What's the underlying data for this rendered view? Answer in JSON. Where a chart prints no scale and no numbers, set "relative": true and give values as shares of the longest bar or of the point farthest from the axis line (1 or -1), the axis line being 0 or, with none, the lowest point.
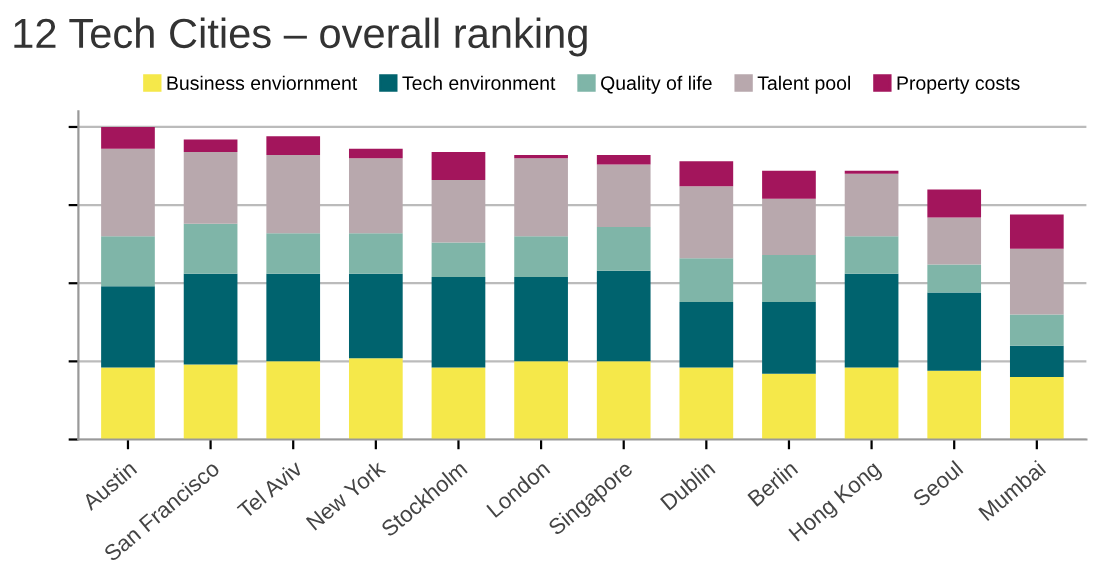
{
  "chart_data": {
    "type": "bar",
    "title": "12 Tech Cities – overall ranking",
    "stacked": true,
    "relative": true,
    "grid": "y",
    "legend": "top",
    "categories": [
      "Austin",
      "San Francisco",
      "Tel Aviv",
      "New York",
      "Stockholm",
      "London",
      "Singapore",
      "Dublin",
      "Berlin",
      "Hong Kong",
      "Seoul",
      "Mumbai"
    ],
    "series": [
      {
        "name": "Business enviornment",
        "color": "#f5e84a",
        "values": [
          0.23,
          0.24,
          0.25,
          0.26,
          0.23,
          0.25,
          0.25,
          0.23,
          0.21,
          0.23,
          0.22,
          0.2
        ]
      },
      {
        "name": "Tech environment",
        "color": "#00636e",
        "values": [
          0.26,
          0.29,
          0.28,
          0.27,
          0.29,
          0.27,
          0.29,
          0.21,
          0.23,
          0.3,
          0.25,
          0.1
        ]
      },
      {
        "name": "Quality of life",
        "color": "#7fb5a8",
        "values": [
          0.16,
          0.16,
          0.13,
          0.13,
          0.11,
          0.13,
          0.14,
          0.14,
          0.15,
          0.12,
          0.09,
          0.1
        ]
      },
      {
        "name": "Talent pool",
        "color": "#b8a8ad",
        "values": [
          0.28,
          0.23,
          0.25,
          0.24,
          0.2,
          0.25,
          0.2,
          0.23,
          0.18,
          0.2,
          0.15,
          0.21
        ]
      },
      {
        "name": "Property costs",
        "color": "#a3155c",
        "values": [
          0.07,
          0.04,
          0.06,
          0.03,
          0.09,
          0.01,
          0.03,
          0.08,
          0.09,
          0.01,
          0.09,
          0.11
        ]
      }
    ]
  }
}
